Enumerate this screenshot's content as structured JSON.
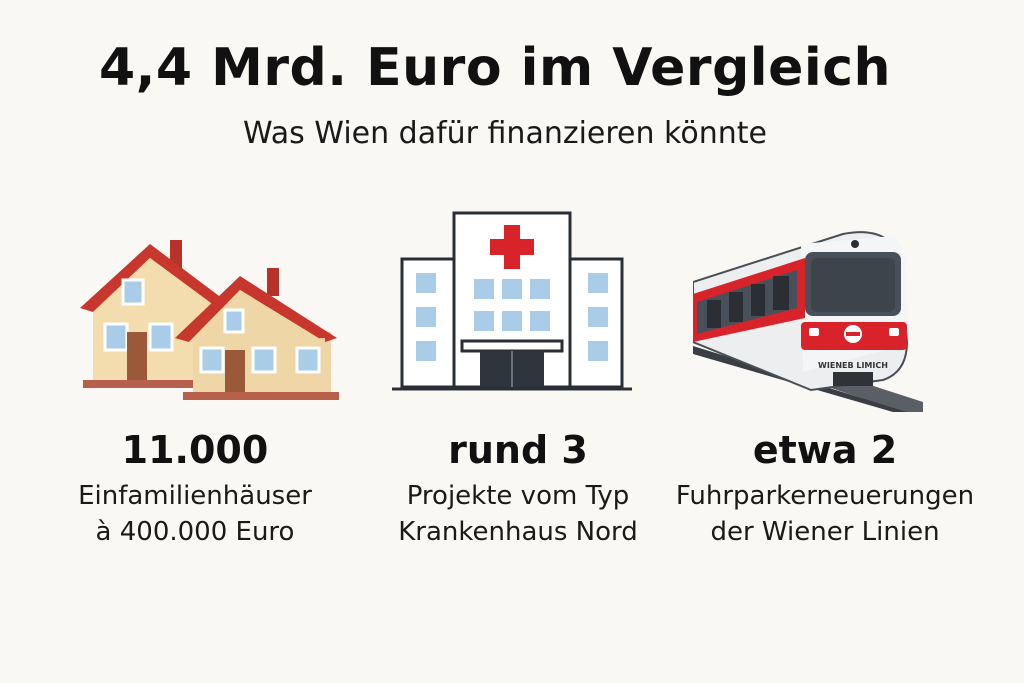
{
  "header": {
    "title": "4,4 Mrd. Euro im Vergleich",
    "subtitle": "Was Wien dafür finanzieren könnte"
  },
  "items": [
    {
      "icon": "houses-icon",
      "value": "11.000",
      "line1": "Einfamilienhäuser",
      "line2": "à 400.000 Euro"
    },
    {
      "icon": "hospital-icon",
      "value": "rund 3",
      "line1": "Projekte vom Typ",
      "line2": "Krankenhaus Nord"
    },
    {
      "icon": "tram-icon",
      "value": "etwa 2",
      "line1": "Fuhrparkerneuerungen",
      "line2": "der Wiener Linien"
    }
  ],
  "train_label": "WIENEB LIMICH",
  "colors": {
    "roof": "#c8372d",
    "wall": "#f3dcae",
    "accent": "#d8232a",
    "window": "#a9cde9"
  }
}
